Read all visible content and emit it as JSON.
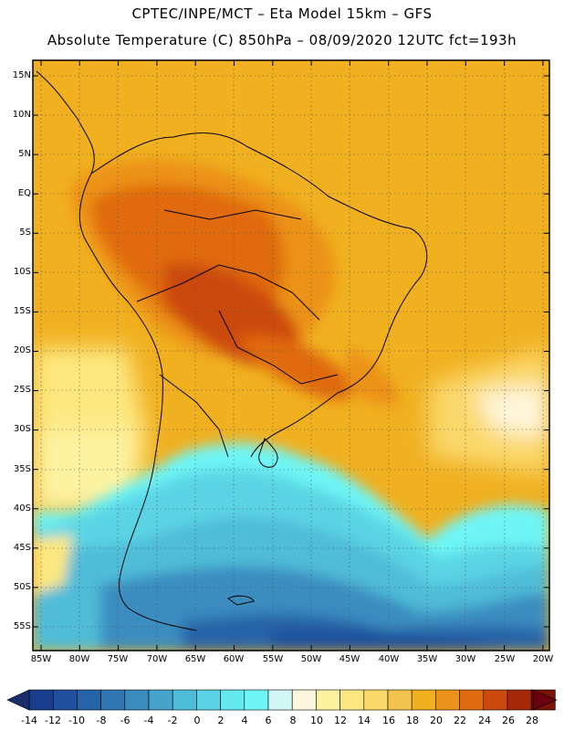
{
  "header": {
    "line1": "CPTEC/INPE/MCT –  Eta Model 15km – GFS",
    "line2": "Absolute Temperature (C) 850hPa – 08/09/2020 12UTC fct=193h"
  },
  "lat_labels": [
    "15N",
    "10N",
    "5N",
    "EQ",
    "5S",
    "10S",
    "15S",
    "20S",
    "25S",
    "30S",
    "35S",
    "40S",
    "45S",
    "50S",
    "55S"
  ],
  "lon_labels": [
    "85W",
    "80W",
    "75W",
    "70W",
    "65W",
    "60W",
    "55W",
    "50W",
    "45W",
    "40W",
    "35W",
    "30W",
    "25W",
    "20W"
  ],
  "colorbar": {
    "labels": [
      "-14",
      "-12",
      "-10",
      "-8",
      "-6",
      "-4",
      "-2",
      "0",
      "2",
      "4",
      "6",
      "8",
      "10",
      "12",
      "14",
      "16",
      "18",
      "20",
      "22",
      "24",
      "26",
      "28"
    ],
    "colors": [
      "#1a3e8e",
      "#1f4f9e",
      "#2763a8",
      "#2f76b2",
      "#3a8cbf",
      "#44a4cb",
      "#4fbcd8",
      "#5ad4e4",
      "#62e8ee",
      "#6ef6f6",
      "#d2f7f7",
      "#fef6dc",
      "#fdf2a0",
      "#fde880",
      "#fbd86a",
      "#f5c44e",
      "#f0b020",
      "#ec9218",
      "#e06a10",
      "#cc4a0e",
      "#a62a0a",
      "#7a1406"
    ],
    "low_arrow_color": "#1a2e6e",
    "high_arrow_color": "#6a0010"
  }
}
